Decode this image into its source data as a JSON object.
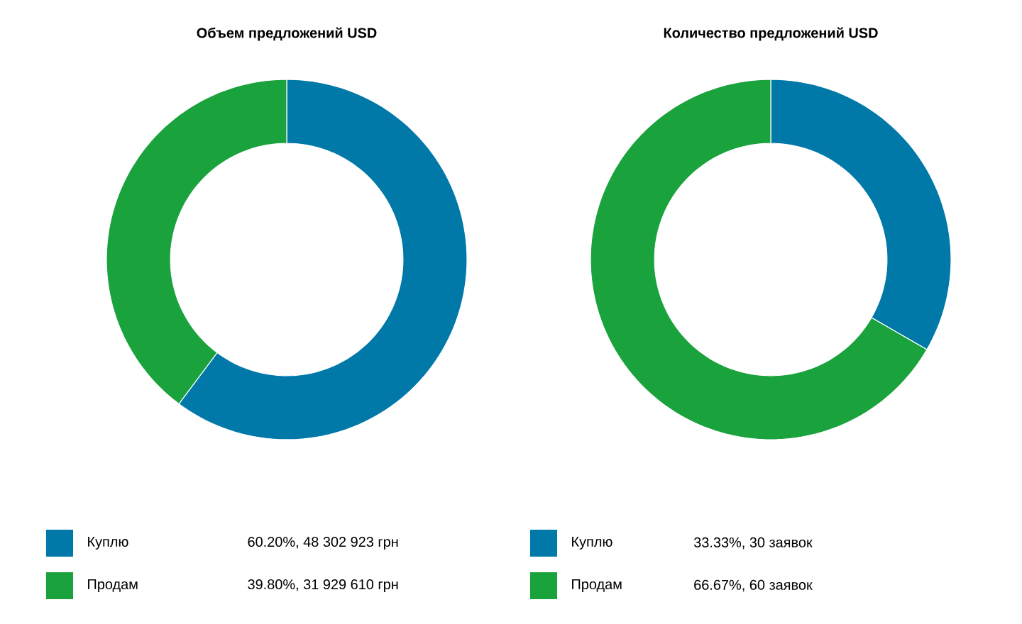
{
  "chart_data": [
    {
      "type": "donut",
      "title": "Объем предложений USD",
      "categories": [
        "Куплю",
        "Продам"
      ],
      "values": [
        48302923,
        31929610
      ],
      "value_labels": [
        "60.20%, 48 302 923 грн",
        "39.80%, 31 929 610 грн"
      ],
      "colors": [
        "#0079a9",
        "#1aa23c"
      ],
      "legend": "bottom"
    },
    {
      "type": "donut",
      "title": "Количество предложений USD",
      "categories": [
        "Куплю",
        "Продам"
      ],
      "values": [
        30,
        60
      ],
      "value_labels": [
        "33.33%, 30 заявок",
        "66.67%, 60 заявок"
      ],
      "colors": [
        "#0079a9",
        "#1aa23c"
      ],
      "legend": "bottom"
    }
  ]
}
